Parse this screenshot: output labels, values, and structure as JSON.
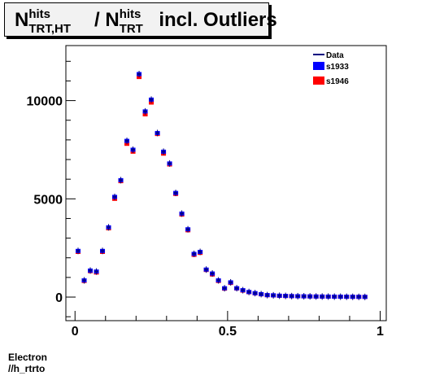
{
  "title": {
    "prefix": "N",
    "sup1": "hits",
    "sub1": "TRT,HT",
    "slash": " / N",
    "sup2": "hits",
    "sub2": "TRT",
    "suffix": " incl. Outliers"
  },
  "footer": {
    "line1": "Electron",
    "line2": "//h_rtrto"
  },
  "colors": {
    "data": "#000080",
    "s1933": "#0000ff",
    "s1946": "#ff0000"
  },
  "chart_data": {
    "type": "scatter",
    "xlim": [
      -0.03,
      1.02
    ],
    "ylim": [
      -1200,
      12800
    ],
    "x_ticks": [
      0,
      0.5,
      1
    ],
    "x_tick_labels": [
      "0",
      "0.5",
      "1"
    ],
    "y_ticks": [
      0,
      5000,
      10000
    ],
    "y_tick_labels": [
      "0",
      "5000",
      "10000"
    ],
    "legend_position": "top-right",
    "legend": [
      {
        "label": "Data",
        "style": "line"
      },
      {
        "label": "s1933",
        "style": "box"
      },
      {
        "label": "s1946",
        "style": "box"
      }
    ],
    "bin_width": 0.02,
    "x": [
      0.01,
      0.03,
      0.05,
      0.07,
      0.09,
      0.11,
      0.13,
      0.15,
      0.17,
      0.19,
      0.21,
      0.23,
      0.25,
      0.27,
      0.29,
      0.31,
      0.33,
      0.35,
      0.37,
      0.39,
      0.41,
      0.43,
      0.45,
      0.47,
      0.49,
      0.51,
      0.53,
      0.55,
      0.57,
      0.59,
      0.61,
      0.63,
      0.65,
      0.67,
      0.69,
      0.71,
      0.73,
      0.75,
      0.77,
      0.79,
      0.81,
      0.83,
      0.85,
      0.87,
      0.89,
      0.91,
      0.93,
      0.95
    ],
    "series": [
      {
        "name": "Data",
        "values": [
          2350,
          850,
          1350,
          1300,
          2350,
          3550,
          5100,
          5950,
          7950,
          7500,
          11350,
          9450,
          10050,
          8350,
          7400,
          6800,
          5300,
          4250,
          3450,
          2200,
          2300,
          1400,
          1200,
          850,
          450,
          750,
          450,
          350,
          260,
          200,
          150,
          100,
          90,
          70,
          60,
          50,
          45,
          40,
          35,
          30,
          28,
          25,
          22,
          20,
          18,
          15,
          12,
          10
        ]
      },
      {
        "name": "s1933",
        "values": [
          2350,
          850,
          1350,
          1300,
          2350,
          3550,
          5100,
          5950,
          7950,
          7500,
          11350,
          9450,
          10050,
          8350,
          7400,
          6800,
          5300,
          4250,
          3450,
          2200,
          2300,
          1400,
          1200,
          850,
          450,
          750,
          450,
          350,
          260,
          200,
          150,
          100,
          90,
          70,
          60,
          50,
          45,
          40,
          35,
          30,
          28,
          25,
          22,
          20,
          18,
          15,
          12,
          10
        ]
      },
      {
        "name": "s1946",
        "values": [
          2300,
          820,
          1320,
          1250,
          2300,
          3500,
          5000,
          5900,
          7800,
          7400,
          11200,
          9300,
          9900,
          8300,
          7300,
          6750,
          5250,
          4200,
          3400,
          2150,
          2250,
          1380,
          1150,
          820,
          430,
          720,
          440,
          330,
          250,
          190,
          140,
          95,
          85,
          65,
          55,
          48,
          42,
          38,
          33,
          28,
          26,
          23,
          20,
          18,
          16,
          14,
          11,
          9
        ]
      }
    ]
  }
}
